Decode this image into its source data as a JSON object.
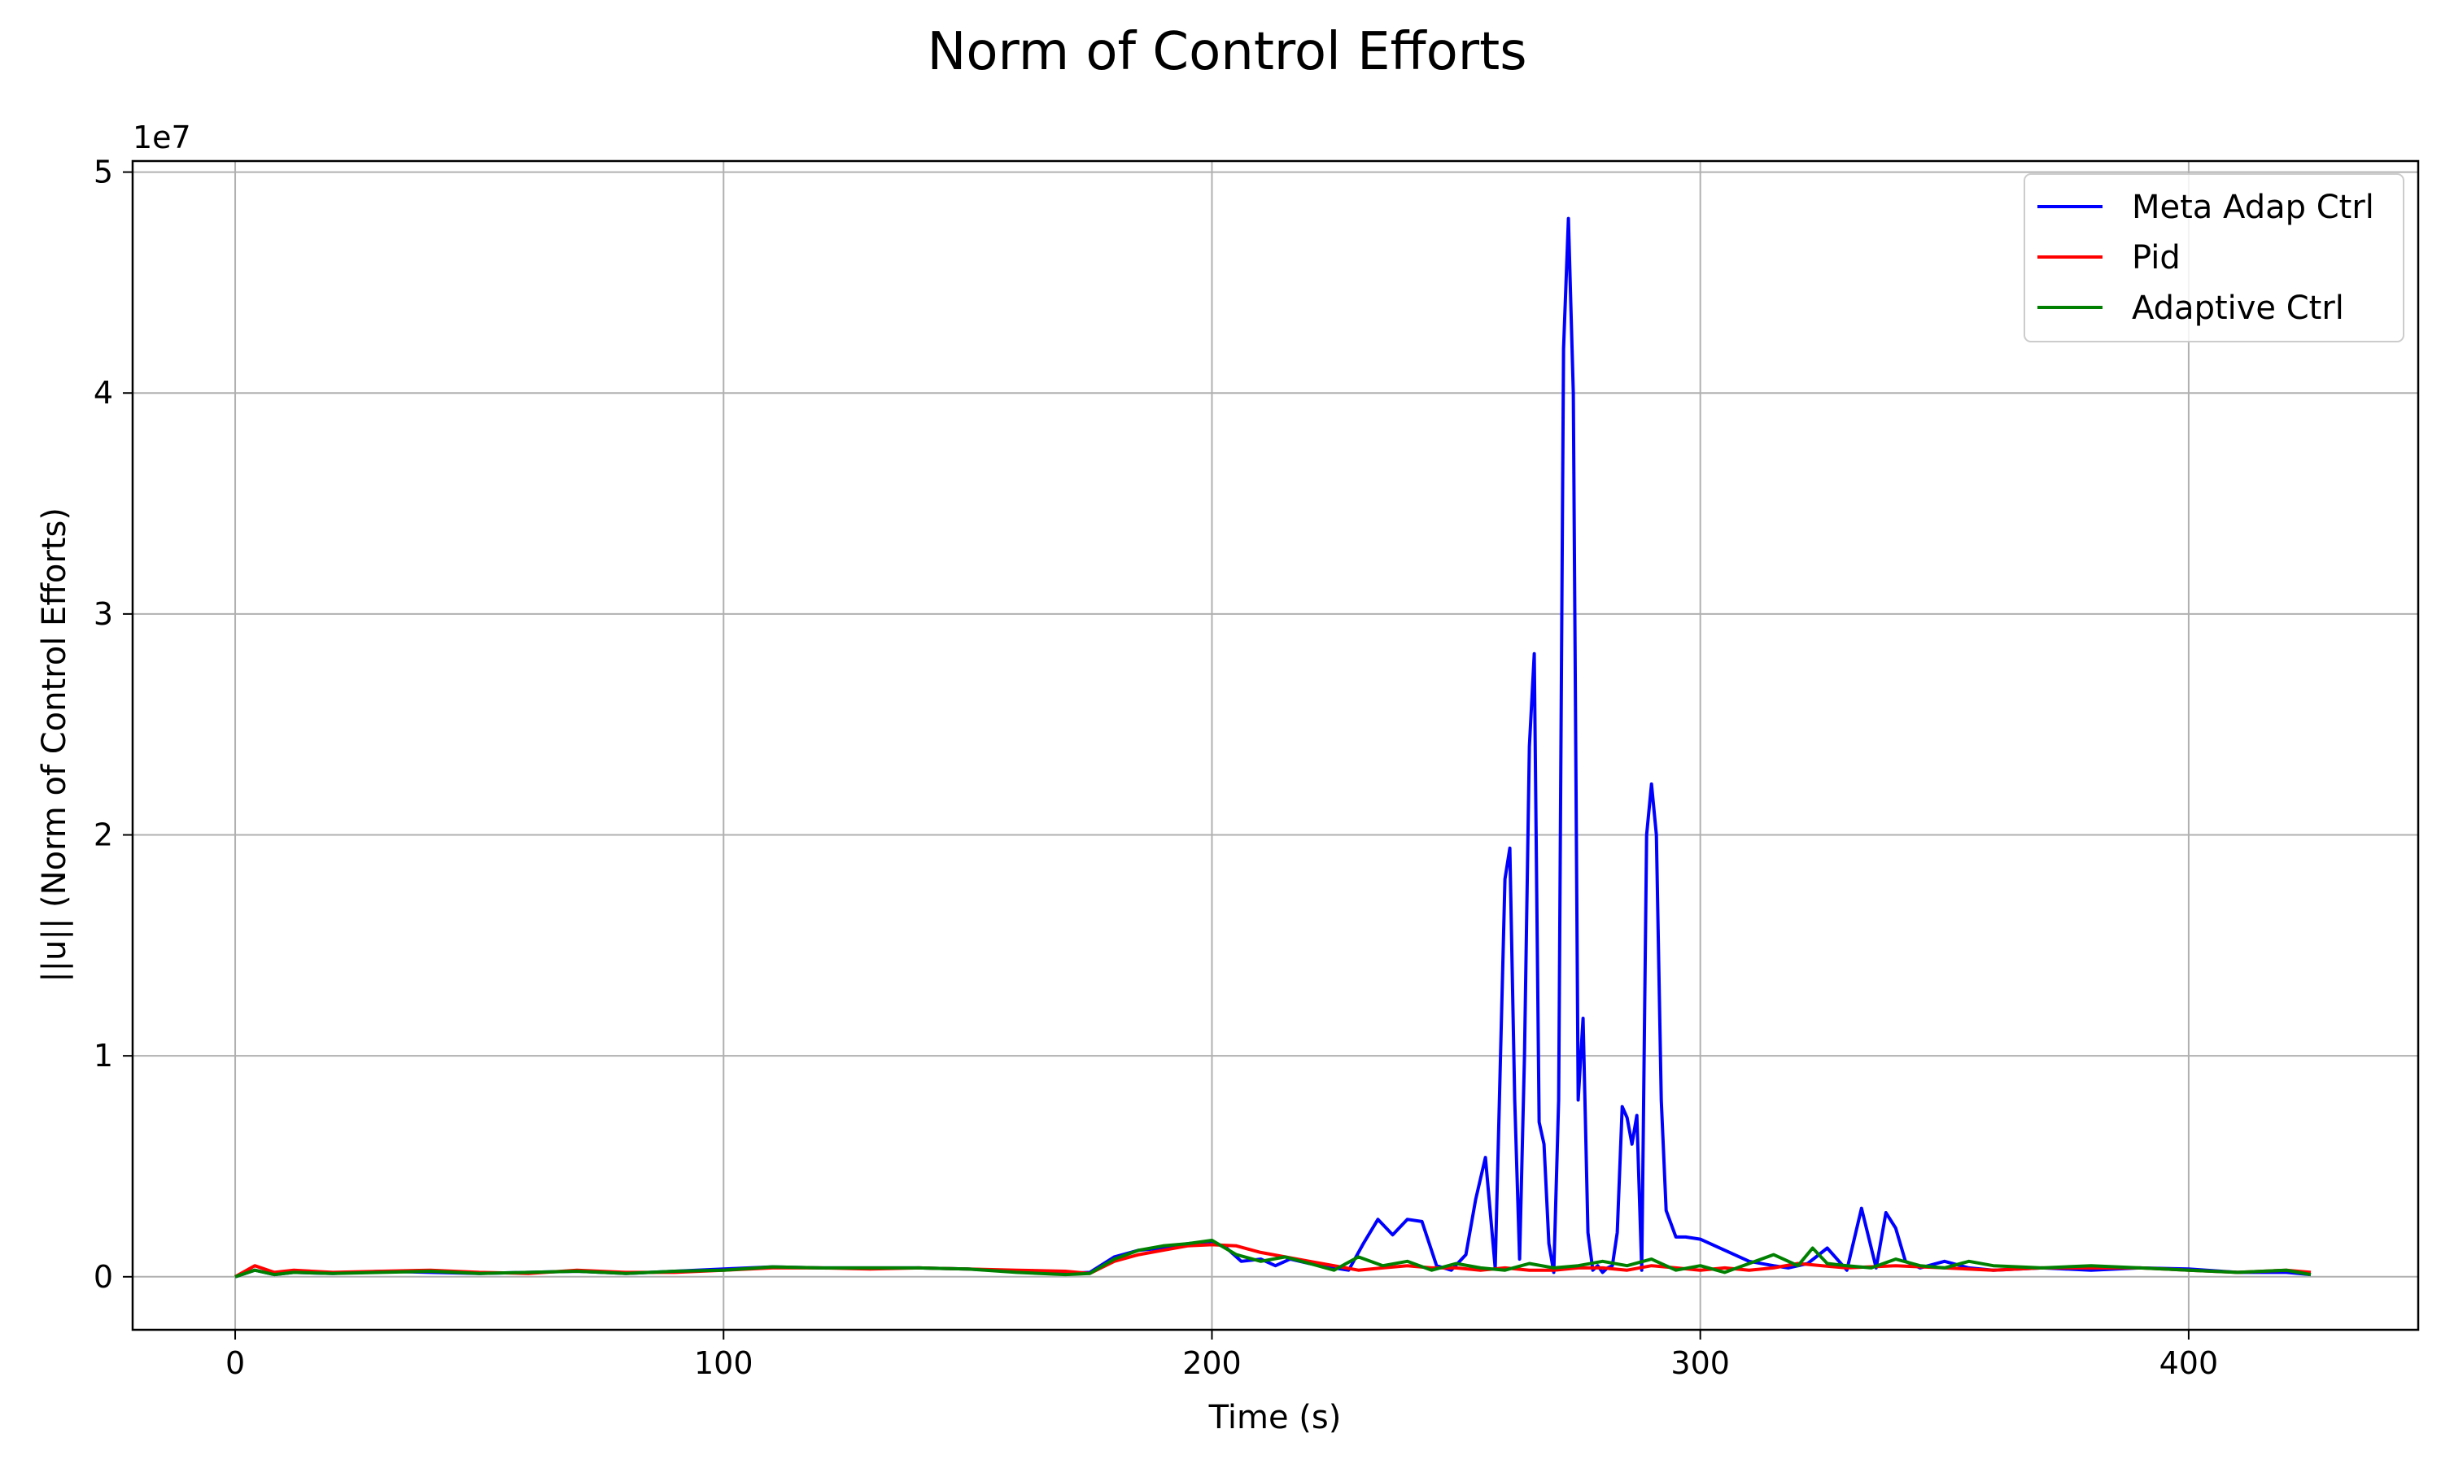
{
  "chart_data": {
    "type": "line",
    "title": "Norm of Control Efforts",
    "xlabel": "Time (s)",
    "ylabel": "||u|| (Norm of Control Efforts)",
    "y_offset_label": "1e7",
    "xlim": [
      -21,
      447
    ],
    "ylim": [
      -2400000,
      50500000
    ],
    "x_ticks": [
      0,
      100,
      200,
      300,
      400
    ],
    "x_tick_labels": [
      "0",
      "100",
      "200",
      "300",
      "400"
    ],
    "y_ticks": [
      0,
      10000000,
      20000000,
      30000000,
      40000000,
      50000000
    ],
    "y_tick_labels": [
      "0",
      "1",
      "2",
      "3",
      "4",
      "5"
    ],
    "grid": true,
    "legend_position": "top-right",
    "series": [
      {
        "name": "Meta Adap Ctrl",
        "color": "#0000ff",
        "x": [
          0,
          4,
          8,
          12,
          20,
          30,
          40,
          50,
          60,
          70,
          80,
          90,
          100,
          110,
          120,
          130,
          140,
          150,
          160,
          170,
          175,
          180,
          185,
          190,
          195,
          200,
          203,
          206,
          210,
          213,
          216,
          220,
          225,
          228,
          231,
          234,
          237,
          240,
          243,
          246,
          249,
          252,
          254,
          256,
          258,
          260,
          261,
          262,
          263,
          264,
          265,
          266,
          267,
          268,
          269,
          270,
          271,
          272,
          273,
          274,
          275,
          276,
          277,
          278,
          279,
          280,
          281,
          282,
          283,
          284,
          285,
          286,
          287,
          288,
          289,
          290,
          291,
          292,
          293,
          295,
          297,
          300,
          305,
          310,
          315,
          318,
          322,
          326,
          330,
          333,
          336,
          338,
          340,
          342,
          345,
          350,
          355,
          360,
          370,
          380,
          390,
          400,
          410,
          420,
          425
        ],
        "values": [
          0,
          300000,
          100000,
          200000,
          150000,
          250000,
          200000,
          150000,
          200000,
          250000,
          150000,
          250000,
          350000,
          450000,
          400000,
          400000,
          400000,
          350000,
          250000,
          150000,
          200000,
          900000,
          1200000,
          1300000,
          1500000,
          1600000,
          1300000,
          700000,
          800000,
          500000,
          800000,
          600000,
          400000,
          300000,
          1500000,
          2600000,
          1900000,
          2600000,
          2500000,
          500000,
          300000,
          1000000,
          3500000,
          5400000,
          400000,
          18000000,
          19400000,
          8000000,
          800000,
          10000000,
          24000000,
          28200000,
          7000000,
          6000000,
          1500000,
          200000,
          8000000,
          42000000,
          47900000,
          40000000,
          8000000,
          11700000,
          2000000,
          300000,
          500000,
          200000,
          400000,
          500000,
          2000000,
          7700000,
          7200000,
          6000000,
          7300000,
          300000,
          20000000,
          22300000,
          20000000,
          8000000,
          3000000,
          1800000,
          1800000,
          1700000,
          1200000,
          700000,
          500000,
          400000,
          600000,
          1300000,
          300000,
          3100000,
          400000,
          2900000,
          2200000,
          700000,
          400000,
          700000,
          400000,
          300000,
          400000,
          300000,
          400000,
          350000,
          200000,
          200000,
          100000
        ]
      },
      {
        "name": "Pid",
        "color": "#ff0000",
        "x": [
          0,
          4,
          8,
          12,
          20,
          30,
          40,
          50,
          60,
          70,
          80,
          90,
          100,
          110,
          120,
          130,
          140,
          150,
          160,
          170,
          175,
          180,
          185,
          190,
          195,
          200,
          205,
          210,
          215,
          220,
          225,
          230,
          235,
          240,
          245,
          250,
          255,
          260,
          265,
          270,
          275,
          280,
          285,
          290,
          295,
          300,
          305,
          310,
          315,
          320,
          325,
          330,
          340,
          350,
          360,
          370,
          380,
          390,
          400,
          410,
          420,
          425
        ],
        "values": [
          0,
          500000,
          200000,
          300000,
          200000,
          250000,
          300000,
          200000,
          150000,
          300000,
          200000,
          200000,
          300000,
          400000,
          400000,
          350000,
          400000,
          350000,
          300000,
          250000,
          150000,
          700000,
          1000000,
          1200000,
          1400000,
          1450000,
          1400000,
          1100000,
          900000,
          700000,
          500000,
          300000,
          400000,
          500000,
          400000,
          400000,
          300000,
          400000,
          300000,
          300000,
          400000,
          400000,
          300000,
          500000,
          400000,
          300000,
          400000,
          300000,
          400000,
          600000,
          500000,
          400000,
          500000,
          400000,
          300000,
          400000,
          400000,
          400000,
          300000,
          200000,
          300000,
          200000
        ]
      },
      {
        "name": "Adaptive Ctrl",
        "color": "#008000",
        "x": [
          0,
          4,
          8,
          12,
          20,
          30,
          40,
          50,
          60,
          70,
          80,
          90,
          100,
          110,
          120,
          130,
          140,
          150,
          160,
          170,
          175,
          180,
          185,
          190,
          195,
          200,
          205,
          210,
          215,
          220,
          225,
          230,
          235,
          240,
          245,
          250,
          255,
          260,
          265,
          270,
          275,
          280,
          285,
          290,
          295,
          300,
          305,
          310,
          315,
          320,
          323,
          326,
          330,
          335,
          340,
          345,
          350,
          355,
          360,
          370,
          380,
          390,
          400,
          410,
          420,
          425
        ],
        "values": [
          0,
          300000,
          100000,
          200000,
          150000,
          200000,
          250000,
          150000,
          200000,
          250000,
          150000,
          250000,
          300000,
          450000,
          400000,
          400000,
          400000,
          350000,
          200000,
          100000,
          150000,
          800000,
          1200000,
          1400000,
          1500000,
          1650000,
          1000000,
          700000,
          900000,
          600000,
          300000,
          900000,
          500000,
          700000,
          300000,
          600000,
          400000,
          300000,
          600000,
          400000,
          500000,
          700000,
          500000,
          800000,
          300000,
          500000,
          200000,
          600000,
          1000000,
          500000,
          1300000,
          600000,
          500000,
          400000,
          800000,
          500000,
          400000,
          700000,
          500000,
          400000,
          500000,
          400000,
          300000,
          200000,
          300000,
          100000
        ]
      }
    ]
  }
}
